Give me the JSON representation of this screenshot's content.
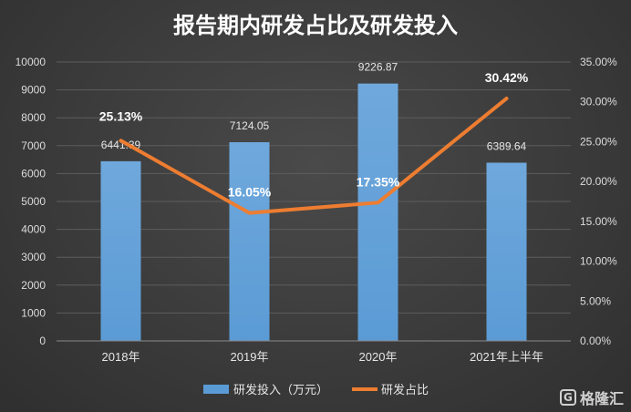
{
  "chart_data": {
    "type": "bar",
    "title": "报告期内研发占比及研发投入",
    "categories": [
      "2018年",
      "2019年",
      "2020年",
      "2021年上半年"
    ],
    "series": [
      {
        "name": "研发投入（万元）",
        "type": "bar",
        "axis": "left",
        "values": [
          6441.39,
          7124.05,
          9226.87,
          6389.64
        ],
        "labels": [
          "6441.39",
          "7124.05",
          "9226.87",
          "6389.64"
        ],
        "color": "#5b9bd5"
      },
      {
        "name": "研发占比",
        "type": "line",
        "axis": "right",
        "values": [
          25.13,
          16.05,
          17.35,
          30.42
        ],
        "labels": [
          "25.13%",
          "16.05%",
          "17.35%",
          "30.42%"
        ],
        "color": "#ed7d31"
      }
    ],
    "y_left": {
      "min": 0,
      "max": 10000,
      "ticks": [
        "0",
        "1000",
        "2000",
        "3000",
        "4000",
        "5000",
        "6000",
        "7000",
        "8000",
        "9000",
        "10000"
      ]
    },
    "y_right": {
      "min": 0,
      "max": 35,
      "ticks": [
        "0.00%",
        "5.00%",
        "10.00%",
        "15.00%",
        "20.00%",
        "25.00%",
        "30.00%",
        "35.00%"
      ]
    },
    "grid": true,
    "legend_position": "bottom-center"
  },
  "watermark": {
    "text": "格隆汇",
    "icon": "g-logo-icon"
  }
}
